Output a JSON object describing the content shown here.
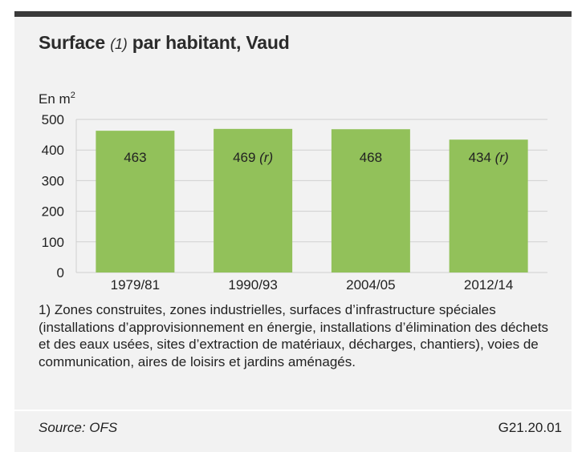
{
  "header": {
    "title_main": "Surface",
    "title_note": "(1)",
    "title_rest": "par habitant, Vaud",
    "unit_label": "En m",
    "unit_exp": "2"
  },
  "footnote": "1) Zones construites, zones industrielles, surfaces d’infrastructure spéciales (installations d’approvisionnement en énergie, installations d’élimination des déchets et des eaux usées, sites d’extraction de matériaux, décharges, chantiers), voies de communication, aires de loisirs et jardins aménagés.",
  "footer": {
    "source": "Source: OFS",
    "code": "G21.20.01"
  },
  "colors": {
    "bar": "#92c15a",
    "grid": "#d0d0d0",
    "topbar": "#3a3a3a",
    "panel": "#f2f2f2"
  },
  "chart_data": {
    "type": "bar",
    "title": "Surface (1) par habitant, Vaud",
    "ylabel": "En m2",
    "xlabel": "",
    "categories": [
      "1979/81",
      "1990/93",
      "2004/05",
      "2012/14"
    ],
    "values": [
      463,
      469,
      468,
      434
    ],
    "value_labels": [
      "463",
      "469",
      "468",
      "434"
    ],
    "value_flags": [
      "",
      "(r)",
      "",
      "(r)"
    ],
    "ylim": [
      0,
      500
    ],
    "yticks": [
      0,
      100,
      200,
      300,
      400,
      500
    ],
    "grid": true,
    "legend": "none"
  }
}
